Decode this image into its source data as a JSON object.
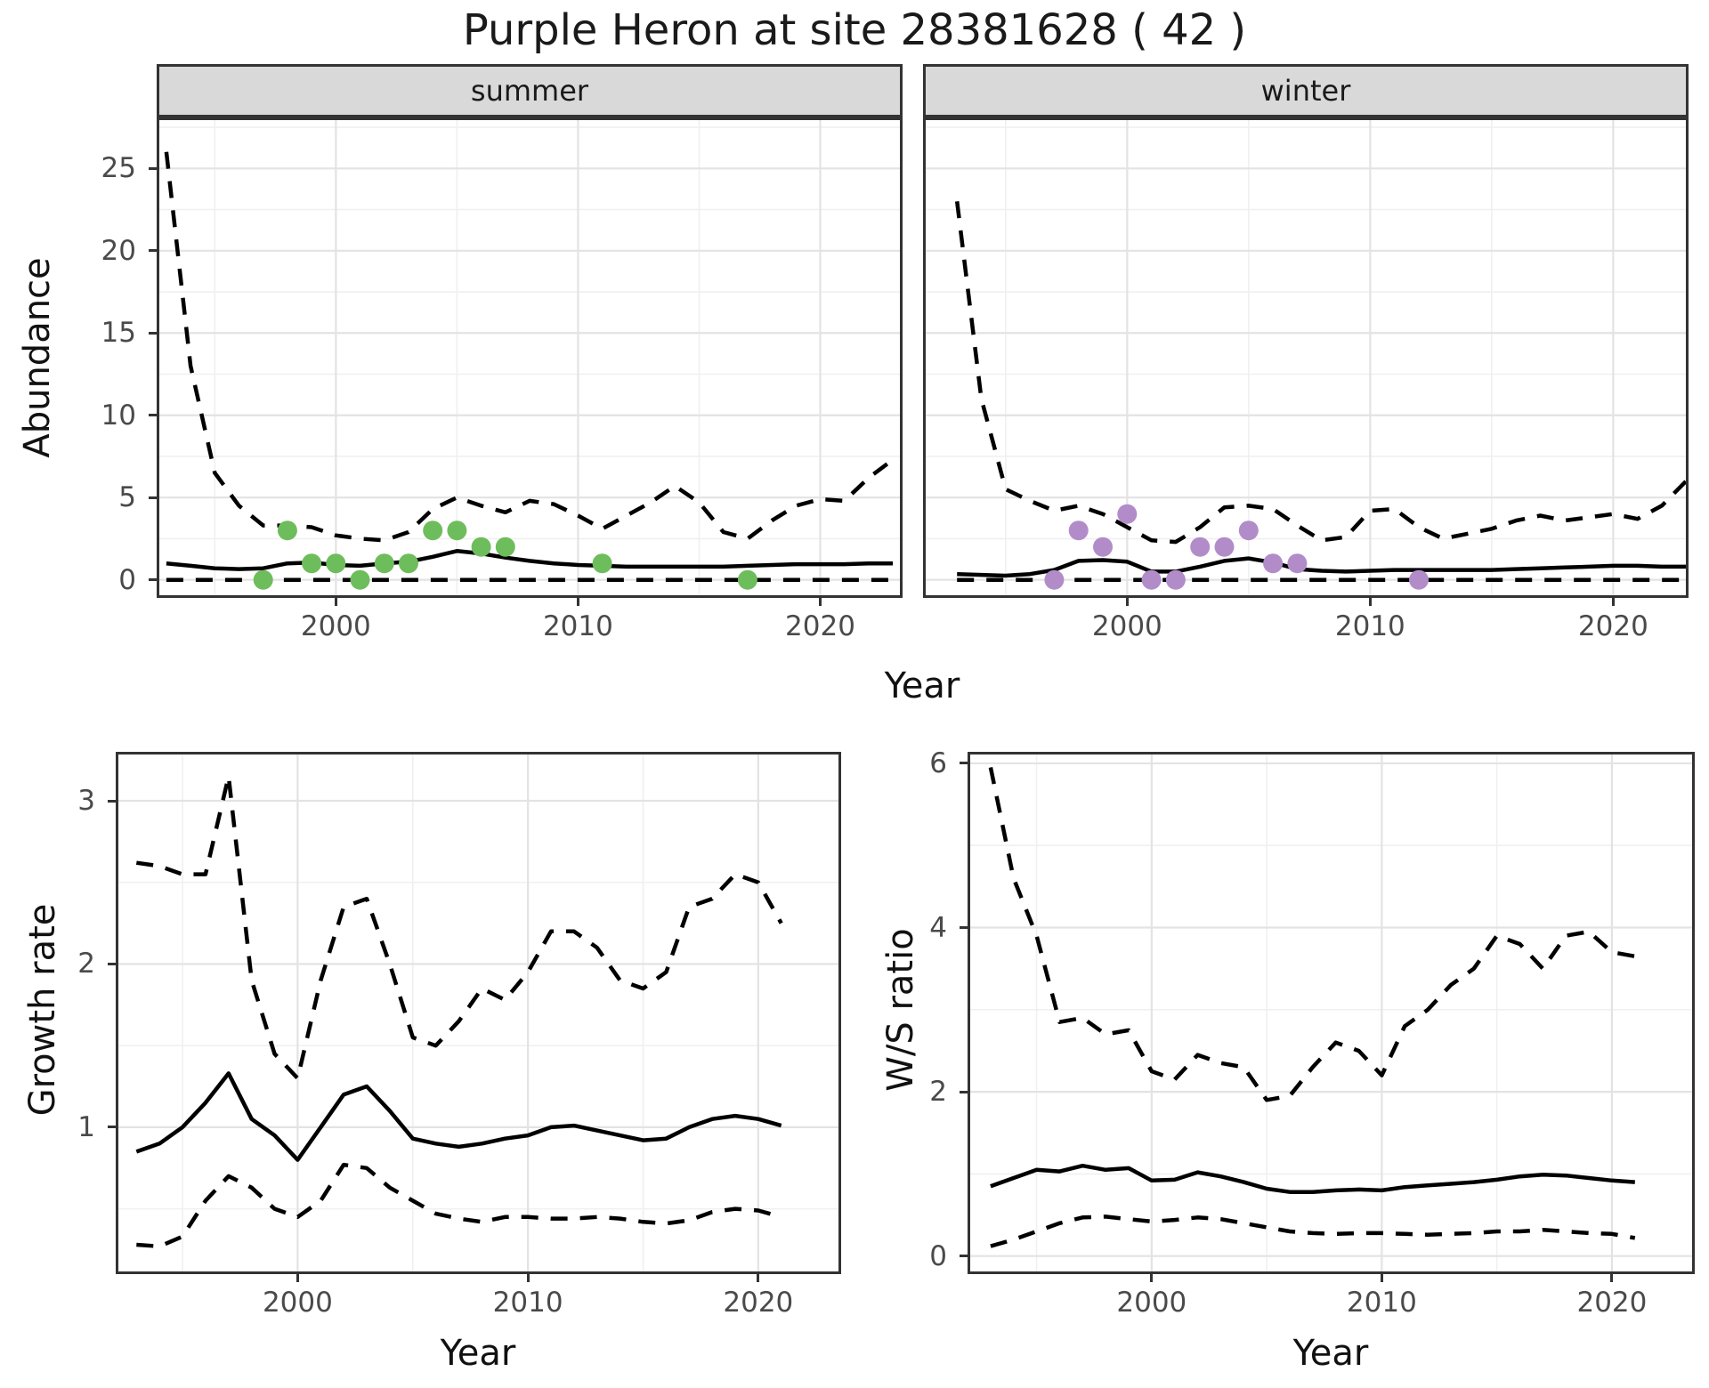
{
  "title": "Purple Heron at site 28381628 ( 42 )",
  "colors": {
    "background": "#ffffff",
    "strip_bg": "#d9d9d9",
    "panel_border": "#333333",
    "grid_major": "#e3e3e3",
    "grid_minor": "#f0f0f0",
    "axis_text": "#4a4a4a",
    "text": "#1a1a1a",
    "line": "#000000",
    "summer_point": "#6ebd5c",
    "winter_point": "#b28cc9"
  },
  "chart_data": [
    {
      "id": "abundance_summer",
      "type": "line",
      "facet_label": "summer",
      "xlabel": "Year",
      "ylabel": "Abundance",
      "xlim": [
        1992.6,
        2023.4
      ],
      "ylim": [
        -1.1,
        28.1
      ],
      "x_ticks": [
        2000,
        2010,
        2020
      ],
      "x_minor_ticks": [
        1995,
        2005,
        2015
      ],
      "y_ticks": [
        0,
        5,
        10,
        15,
        20,
        25
      ],
      "y_minor_ticks": [
        2.5,
        7.5,
        12.5,
        17.5,
        22.5,
        27.5
      ],
      "grid": true,
      "legend": "none",
      "years": [
        1993,
        1994,
        1995,
        1996,
        1997,
        1998,
        1999,
        2000,
        2001,
        2002,
        2003,
        2004,
        2005,
        2006,
        2007,
        2008,
        2009,
        2010,
        2011,
        2012,
        2013,
        2014,
        2015,
        2016,
        2017,
        2018,
        2019,
        2020,
        2021,
        2022,
        2023
      ],
      "series": [
        {
          "name": "upper_95_ci",
          "style": "dashed",
          "values": [
            26,
            13,
            6.5,
            4.5,
            3.3,
            3.3,
            3.2,
            2.7,
            2.5,
            2.4,
            2.9,
            4.3,
            5.0,
            4.5,
            4.1,
            4.8,
            4.6,
            3.9,
            3.1,
            3.9,
            4.7,
            5.7,
            4.7,
            2.9,
            2.5,
            3.6,
            4.5,
            4.9,
            4.8,
            6.2,
            7.3
          ]
        },
        {
          "name": "median",
          "style": "solid",
          "values": [
            1.0,
            0.85,
            0.7,
            0.65,
            0.7,
            1.0,
            1.05,
            0.9,
            0.85,
            1.0,
            1.1,
            1.4,
            1.75,
            1.6,
            1.35,
            1.15,
            1.0,
            0.9,
            0.85,
            0.8,
            0.8,
            0.8,
            0.8,
            0.8,
            0.85,
            0.9,
            0.95,
            0.95,
            0.95,
            1.0,
            1.0
          ]
        },
        {
          "name": "lower_95_ci",
          "style": "dashed",
          "values": [
            0,
            0,
            0,
            0,
            0,
            0,
            0,
            0,
            0,
            0,
            0,
            0,
            0,
            0,
            0,
            0,
            0,
            0,
            0,
            0,
            0,
            0,
            0,
            0,
            0,
            0,
            0,
            0,
            0,
            0,
            0
          ]
        }
      ],
      "points": {
        "name": "observed-counts-summer",
        "color_key": "summer_point",
        "x": [
          1997,
          1998,
          1999,
          2000,
          2001,
          2002,
          2003,
          2004,
          2005,
          2006,
          2007,
          2011,
          2017
        ],
        "y": [
          0,
          3,
          1,
          1,
          0,
          1,
          1,
          3,
          3,
          2,
          2,
          1,
          0
        ]
      }
    },
    {
      "id": "abundance_winter",
      "type": "line",
      "facet_label": "winter",
      "xlabel": "Year",
      "ylabel": "Abundance",
      "xlim": [
        1991.6,
        2023.1
      ],
      "ylim": [
        -1.1,
        28.1
      ],
      "x_ticks": [
        2000,
        2010,
        2020
      ],
      "x_minor_ticks": [
        1995,
        2005,
        2015
      ],
      "y_ticks": [
        0,
        5,
        10,
        15,
        20,
        25
      ],
      "y_minor_ticks": [
        2.5,
        7.5,
        12.5,
        17.5,
        22.5,
        27.5
      ],
      "grid": true,
      "legend": "none",
      "years": [
        1993,
        1994,
        1995,
        1996,
        1997,
        1998,
        1999,
        2000,
        2001,
        2002,
        2003,
        2004,
        2005,
        2006,
        2007,
        2008,
        2009,
        2010,
        2011,
        2012,
        2013,
        2014,
        2015,
        2016,
        2017,
        2018,
        2019,
        2020,
        2021,
        2022,
        2023
      ],
      "series": [
        {
          "name": "upper_95_ci",
          "style": "dashed",
          "values": [
            23,
            11,
            5.5,
            4.8,
            4.2,
            4.5,
            4.0,
            3.2,
            2.4,
            2.3,
            3.2,
            4.4,
            4.5,
            4.3,
            3.3,
            2.4,
            2.6,
            4.2,
            4.3,
            3.2,
            2.5,
            2.8,
            3.1,
            3.6,
            3.9,
            3.6,
            3.8,
            4.0,
            3.7,
            4.5,
            6.0
          ]
        },
        {
          "name": "median",
          "style": "solid",
          "values": [
            0.35,
            0.3,
            0.25,
            0.35,
            0.6,
            1.15,
            1.2,
            1.1,
            0.5,
            0.5,
            0.8,
            1.15,
            1.3,
            1.05,
            0.65,
            0.55,
            0.5,
            0.55,
            0.6,
            0.6,
            0.6,
            0.6,
            0.6,
            0.65,
            0.7,
            0.75,
            0.8,
            0.85,
            0.85,
            0.8,
            0.8
          ]
        },
        {
          "name": "lower_95_ci",
          "style": "dashed",
          "values": [
            0,
            0,
            0,
            0,
            0,
            0,
            0,
            0,
            0,
            0,
            0,
            0,
            0,
            0,
            0,
            0,
            0,
            0,
            0,
            0,
            0,
            0,
            0,
            0,
            0,
            0,
            0,
            0,
            0,
            0,
            0
          ]
        }
      ],
      "points": {
        "name": "observed-counts-winter",
        "color_key": "winter_point",
        "x": [
          1997,
          1998,
          1999,
          2000,
          2001,
          2002,
          2003,
          2004,
          2005,
          2006,
          2007,
          2012
        ],
        "y": [
          0,
          3,
          2,
          4,
          0,
          0,
          2,
          2,
          3,
          1,
          1,
          0
        ]
      }
    },
    {
      "id": "growth_rate",
      "type": "line",
      "facet_label": "",
      "xlabel": "Year",
      "ylabel": "Growth rate",
      "xlim": [
        1992.1,
        2023.6
      ],
      "ylim": [
        0.1,
        3.3
      ],
      "x_ticks": [
        2000,
        2010,
        2020
      ],
      "x_minor_ticks": [
        1995,
        2005,
        2015
      ],
      "y_ticks": [
        1,
        2,
        3
      ],
      "y_minor_ticks": [
        0.5,
        1.5,
        2.5
      ],
      "grid": true,
      "legend": "none",
      "years": [
        1993,
        1994,
        1995,
        1996,
        1997,
        1998,
        1999,
        2000,
        2001,
        2002,
        2003,
        2004,
        2005,
        2006,
        2007,
        2008,
        2009,
        2010,
        2011,
        2012,
        2013,
        2014,
        2015,
        2016,
        2017,
        2018,
        2019,
        2020,
        2021
      ],
      "series": [
        {
          "name": "upper_95_ci",
          "style": "dashed",
          "values": [
            2.62,
            2.6,
            2.55,
            2.55,
            3.15,
            1.9,
            1.45,
            1.3,
            1.9,
            2.35,
            2.4,
            2.0,
            1.55,
            1.5,
            1.65,
            1.85,
            1.78,
            1.95,
            2.2,
            2.2,
            2.1,
            1.9,
            1.85,
            1.95,
            2.35,
            2.4,
            2.55,
            2.5,
            2.25
          ]
        },
        {
          "name": "median",
          "style": "solid",
          "values": [
            0.85,
            0.9,
            1.0,
            1.15,
            1.33,
            1.05,
            0.95,
            0.8,
            1.0,
            1.2,
            1.25,
            1.1,
            0.93,
            0.9,
            0.88,
            0.9,
            0.93,
            0.95,
            1.0,
            1.01,
            0.98,
            0.95,
            0.92,
            0.93,
            1.0,
            1.05,
            1.07,
            1.05,
            1.01
          ]
        },
        {
          "name": "lower_95_ci",
          "style": "dashed",
          "values": [
            0.28,
            0.27,
            0.33,
            0.55,
            0.7,
            0.63,
            0.5,
            0.45,
            0.55,
            0.77,
            0.75,
            0.63,
            0.55,
            0.47,
            0.44,
            0.42,
            0.45,
            0.45,
            0.44,
            0.44,
            0.45,
            0.44,
            0.42,
            0.41,
            0.43,
            0.48,
            0.5,
            0.49,
            0.45
          ]
        }
      ]
    },
    {
      "id": "ws_ratio",
      "type": "line",
      "facet_label": "",
      "xlabel": "Year",
      "ylabel": "W/S ratio",
      "xlim": [
        1992.0,
        2023.6
      ],
      "ylim": [
        -0.22,
        6.14
      ],
      "x_ticks": [
        2000,
        2010,
        2020
      ],
      "x_minor_ticks": [
        1995,
        2005,
        2015
      ],
      "y_ticks": [
        0,
        2,
        4,
        6
      ],
      "y_minor_ticks": [
        1,
        3,
        5
      ],
      "grid": true,
      "legend": "none",
      "years": [
        1993,
        1994,
        1995,
        1996,
        1997,
        1998,
        1999,
        2000,
        2001,
        2002,
        2003,
        2004,
        2005,
        2006,
        2007,
        2008,
        2009,
        2010,
        2011,
        2012,
        2013,
        2014,
        2015,
        2016,
        2017,
        2018,
        2019,
        2020,
        2021
      ],
      "series": [
        {
          "name": "upper_95_ci",
          "style": "dashed",
          "values": [
            5.95,
            4.6,
            3.9,
            2.85,
            2.9,
            2.7,
            2.75,
            2.25,
            2.15,
            2.45,
            2.35,
            2.3,
            1.9,
            1.95,
            2.3,
            2.6,
            2.5,
            2.2,
            2.8,
            3.0,
            3.3,
            3.5,
            3.9,
            3.8,
            3.5,
            3.9,
            3.95,
            3.7,
            3.65
          ]
        },
        {
          "name": "median",
          "style": "solid",
          "values": [
            0.85,
            0.95,
            1.05,
            1.03,
            1.1,
            1.05,
            1.07,
            0.92,
            0.93,
            1.02,
            0.97,
            0.9,
            0.82,
            0.78,
            0.78,
            0.8,
            0.81,
            0.8,
            0.84,
            0.86,
            0.88,
            0.9,
            0.93,
            0.97,
            0.99,
            0.98,
            0.95,
            0.92,
            0.9
          ]
        },
        {
          "name": "lower_95_ci",
          "style": "dashed",
          "values": [
            0.12,
            0.2,
            0.3,
            0.4,
            0.47,
            0.48,
            0.45,
            0.42,
            0.44,
            0.47,
            0.45,
            0.4,
            0.35,
            0.3,
            0.28,
            0.27,
            0.28,
            0.28,
            0.27,
            0.26,
            0.27,
            0.28,
            0.3,
            0.3,
            0.32,
            0.3,
            0.28,
            0.27,
            0.22
          ]
        }
      ]
    }
  ]
}
